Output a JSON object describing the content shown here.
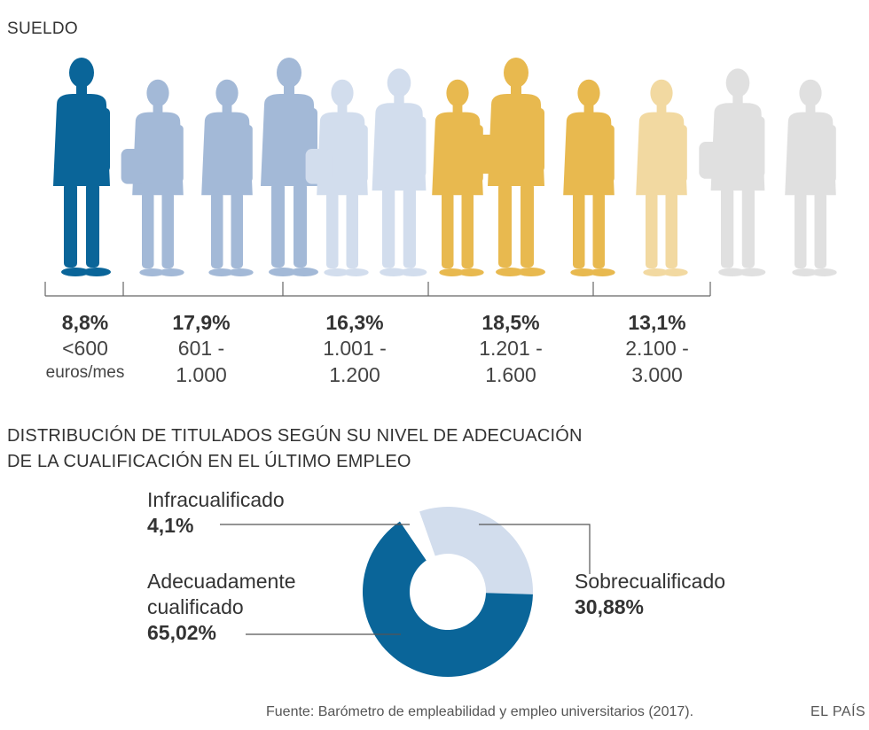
{
  "colors": {
    "dark_blue": "#0a6599",
    "mid_blue": "#a3b9d7",
    "light_blue": "#d2dded",
    "gold": "#e8b94f",
    "light_gold": "#f2d9a1",
    "gray": "#e0e0e0"
  },
  "salary": {
    "title": "SUELDO",
    "figures": [
      "dark_blue",
      "mid_blue",
      "mid_blue",
      "mid_blue",
      "light_blue",
      "light_blue",
      "gold",
      "gold",
      "gold",
      "light_gold",
      "gray",
      "gray"
    ]
  },
  "donut": {
    "title_line1": "DISTRIBUCIÓN DE TITULADOS SEGÚN SU NIVEL DE ADECUACIÓN",
    "title_line2": "DE LA CUALIFICACIÓN EN EL ÚLTIMO EMPLEO"
  },
  "chart_data": [
    {
      "type": "bar",
      "title": "SUELDO",
      "categories": [
        "<600 euros/mes",
        "601 - 1.000",
        "1.001 - 1.200",
        "1.201 - 1.600",
        "2.100 - 3.000"
      ],
      "values": [
        8.8,
        17.9,
        16.3,
        18.5,
        13.1
      ],
      "value_labels": [
        "8,8%",
        "17,9%",
        "16,3%",
        "18,5%",
        "13,1%"
      ],
      "range_lines": [
        [
          "<600",
          "euros/mes"
        ],
        [
          "601 -",
          "1.000"
        ],
        [
          "1.001 -",
          "1.200"
        ],
        [
          "1.201 -",
          "1.600"
        ],
        [
          "2.100 -",
          "3.000"
        ]
      ],
      "colors": [
        "#0a6599",
        "#a3b9d7",
        "#d2dded",
        "#e8b94f",
        "#f2d9a1"
      ]
    },
    {
      "type": "pie",
      "title": "DISTRIBUCIÓN DE TITULADOS SEGÚN SU NIVEL DE ADECUACIÓN DE LA CUALIFICACIÓN EN EL ÚLTIMO EMPLEO",
      "slices": [
        {
          "name": "Sobrecualificado",
          "value": 30.88,
          "label": "30,88%",
          "color": "#d2dded"
        },
        {
          "name": "Adecuadamente cualificado",
          "value": 65.02,
          "label": "65,02%",
          "color": "#0a6599"
        },
        {
          "name": "Infracualificado",
          "value": 4.1,
          "label": "4,1%",
          "color": "#ffffff"
        }
      ]
    }
  ],
  "donut_labels": {
    "infra_name": "Infracualificado",
    "infra_value": "4,1%",
    "adec_name_1": "Adecuadamente",
    "adec_name_2": "cualificado",
    "adec_value": "65,02%",
    "sobre_name": "Sobrecualificado",
    "sobre_value": "30,88%"
  },
  "footer": {
    "source": "Fuente: Barómetro de empleabilidad y empleo universitarios (2017).",
    "brand": "EL PAÍS"
  }
}
